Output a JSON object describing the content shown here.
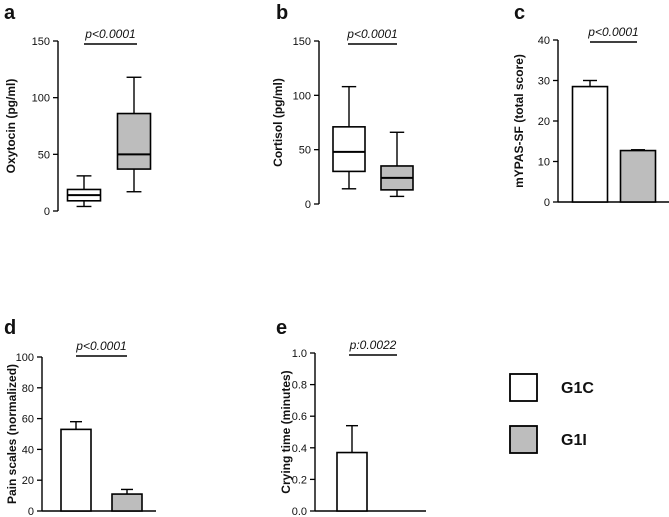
{
  "colors": {
    "g1c": "#ffffff",
    "g1i": "#bdbdbd",
    "stroke": "#000000"
  },
  "legend": {
    "items": [
      {
        "label": "G1C",
        "color": "#ffffff"
      },
      {
        "label": "G1I",
        "color": "#bdbdbd"
      }
    ]
  },
  "chart_data": [
    {
      "id": "a",
      "type": "box",
      "panel_label": "a",
      "ylabel": "Oxytocin (pg/ml)",
      "ylim": [
        0,
        150
      ],
      "yticks": [
        0,
        50,
        100,
        150
      ],
      "annotation": "p<0.0001",
      "series": [
        {
          "name": "G1C",
          "min": 4,
          "q1": 9,
          "median": 14,
          "q3": 19,
          "max": 31
        },
        {
          "name": "G1I",
          "min": 17,
          "q1": 37,
          "median": 50,
          "q3": 86,
          "max": 118
        }
      ]
    },
    {
      "id": "b",
      "type": "box",
      "panel_label": "b",
      "ylabel": "Cortisol (pg/ml)",
      "ylim": [
        0,
        150
      ],
      "yticks": [
        0,
        50,
        100,
        150
      ],
      "annotation": "p<0.0001",
      "series": [
        {
          "name": "G1C",
          "min": 14,
          "q1": 30,
          "median": 48,
          "q3": 71,
          "max": 108
        },
        {
          "name": "G1I",
          "min": 7,
          "q1": 13,
          "median": 24,
          "q3": 35,
          "max": 66
        }
      ]
    },
    {
      "id": "c",
      "type": "bar",
      "panel_label": "c",
      "ylabel": "mYPAS-SF (total score)",
      "ylim": [
        0,
        40
      ],
      "yticks": [
        0,
        10,
        20,
        30,
        40
      ],
      "annotation": "p<0.0001",
      "series": [
        {
          "name": "G1C",
          "value": 28.5,
          "error": 1.5
        },
        {
          "name": "G1I",
          "value": 12.7,
          "error": 0.2
        }
      ]
    },
    {
      "id": "d",
      "type": "bar",
      "panel_label": "d",
      "ylabel": "Pain scales (normalized)",
      "ylim": [
        0,
        100
      ],
      "yticks": [
        0,
        20,
        40,
        60,
        80,
        100
      ],
      "annotation": "p<0.0001",
      "series": [
        {
          "name": "G1C",
          "value": 53,
          "error": 5
        },
        {
          "name": "G1I",
          "value": 11,
          "error": 3
        }
      ]
    },
    {
      "id": "e",
      "type": "bar",
      "panel_label": "e",
      "ylabel": "Crying time (minutes)",
      "ylim": [
        0,
        1.0
      ],
      "yticks": [
        0.0,
        0.2,
        0.4,
        0.6,
        0.8,
        1.0
      ],
      "tick_decimals": 1,
      "annotation": "p:0.0022",
      "series": [
        {
          "name": "G1C",
          "value": 0.37,
          "error": 0.17
        },
        {
          "name": "G1I",
          "value": 0.0,
          "error": 0
        }
      ]
    }
  ]
}
